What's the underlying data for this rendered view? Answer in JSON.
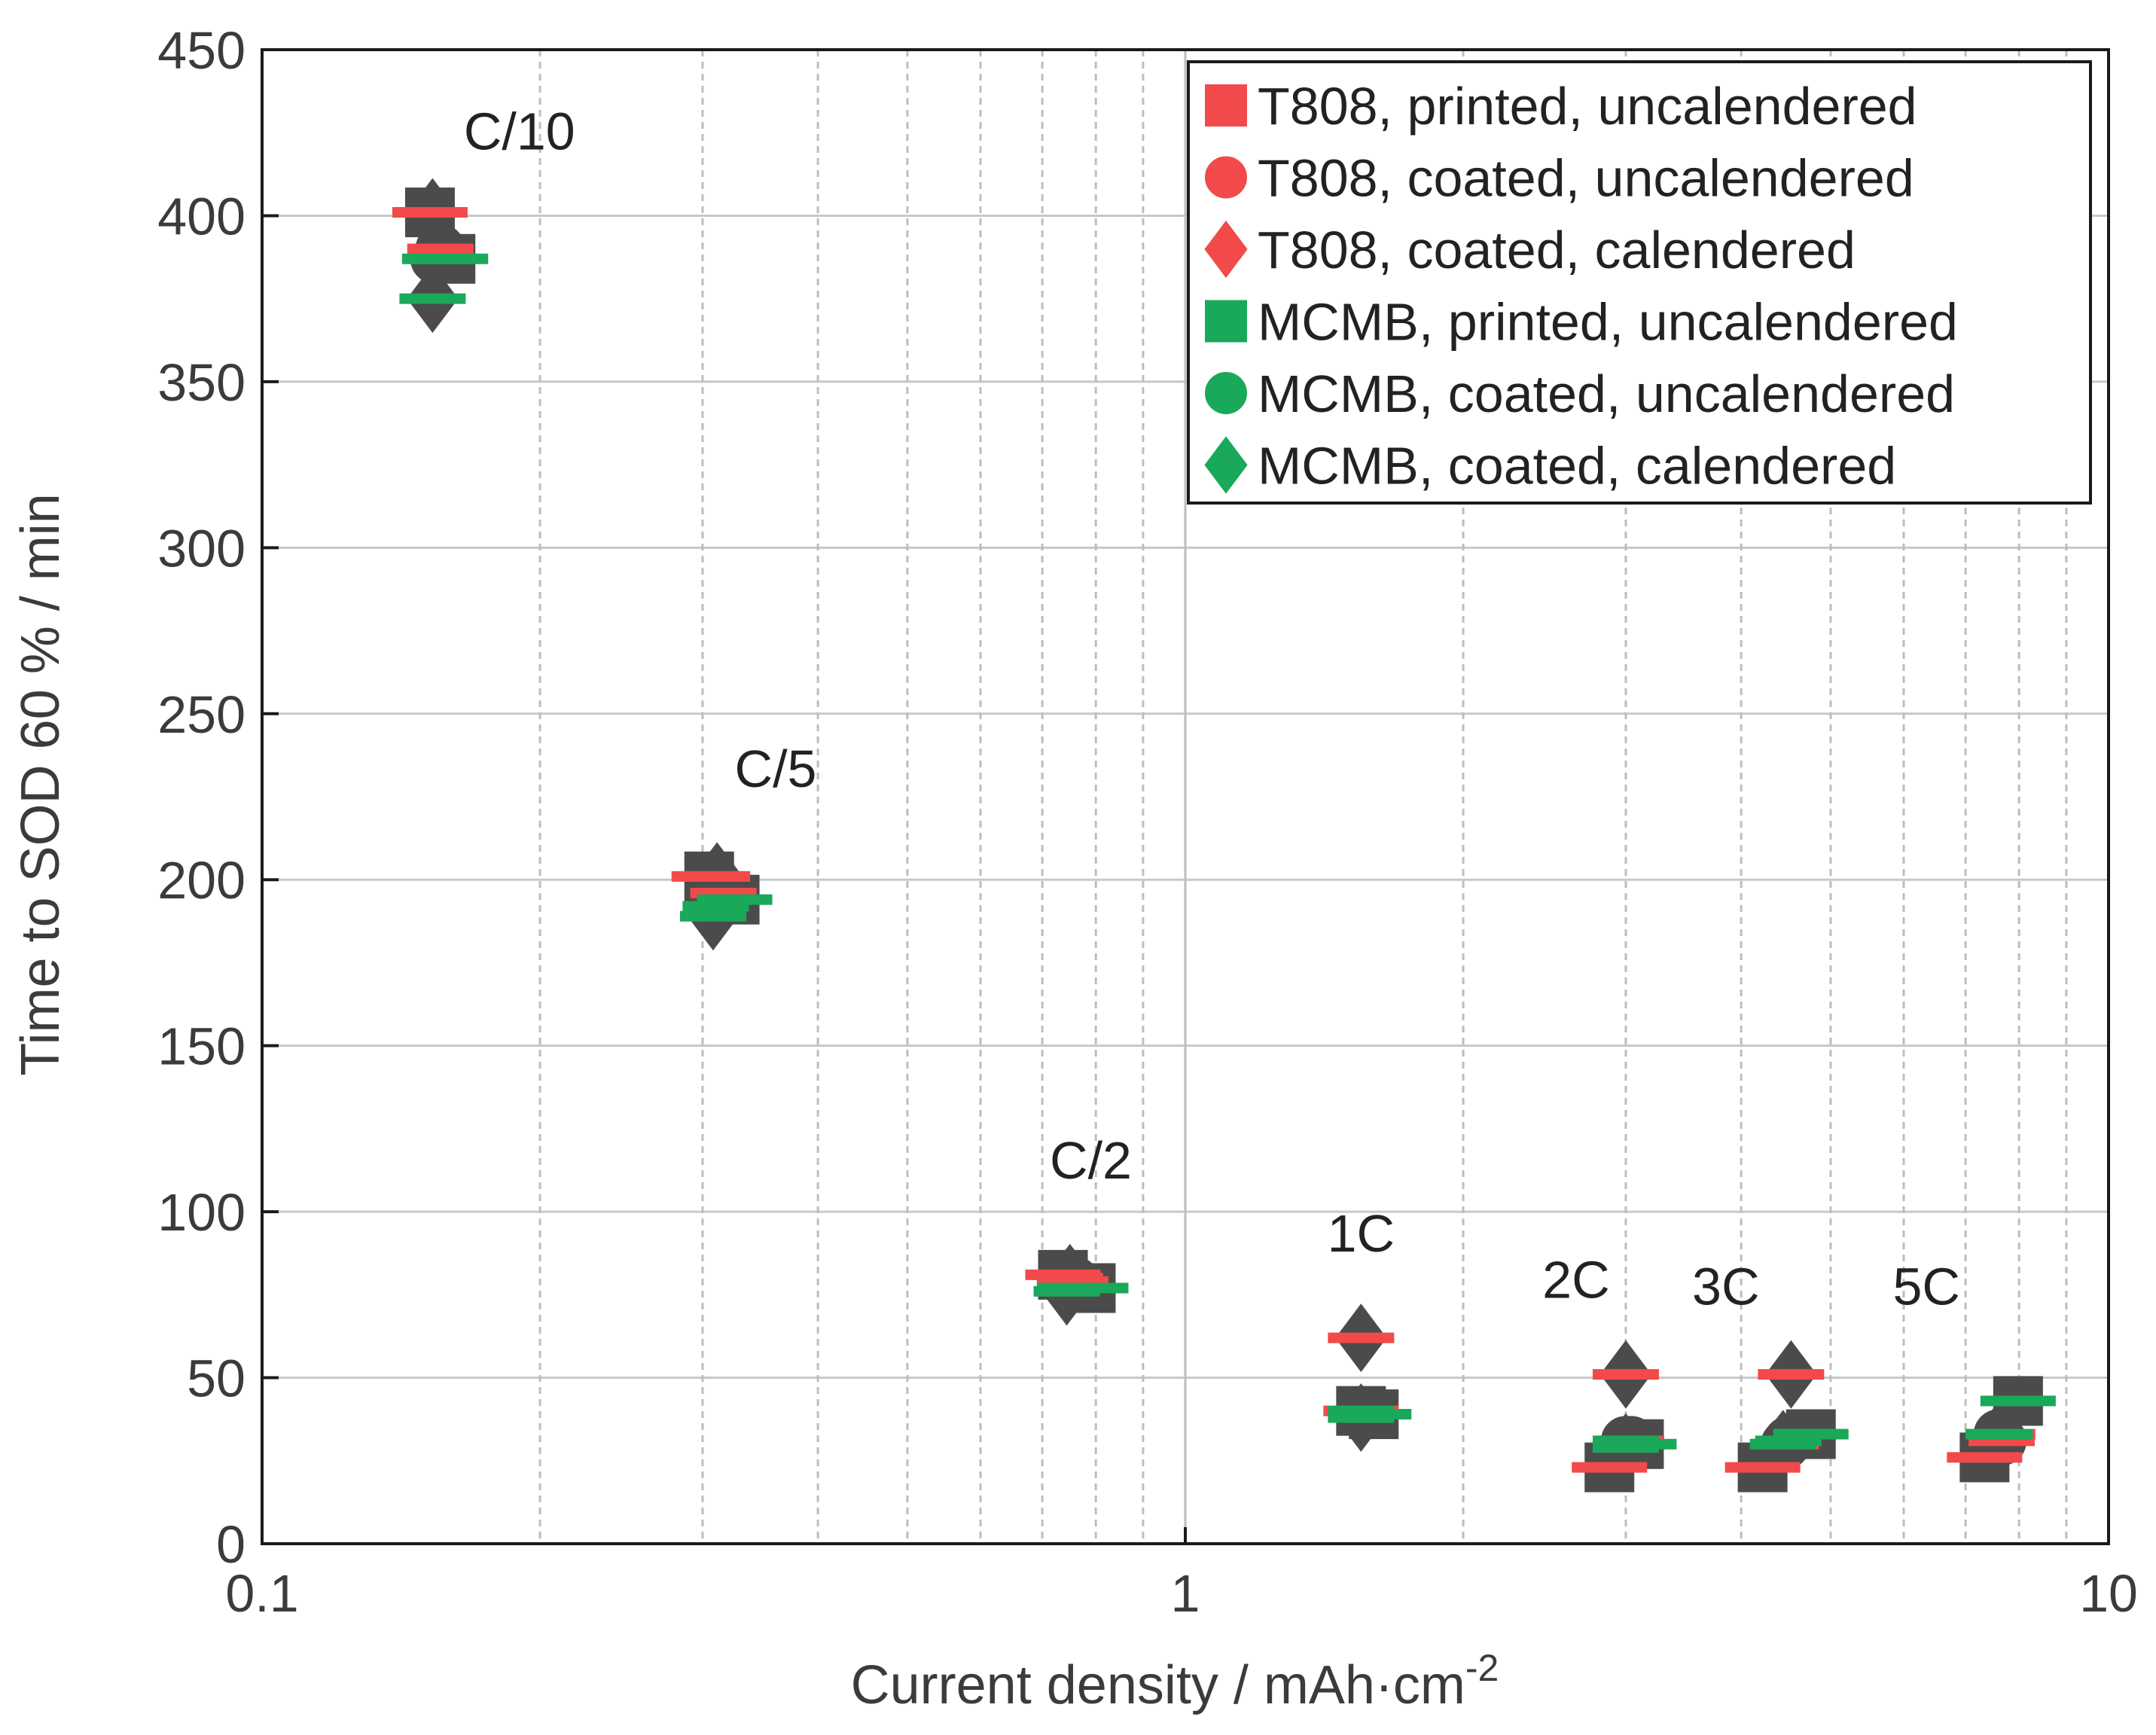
{
  "chart_data": {
    "type": "scatter",
    "title": "",
    "xlabel": "Current density / mAh·cm",
    "xlabel_sup": "-2",
    "ylabel": "Time to SOD 60 % / min",
    "xscale": "log",
    "xlim": [
      0.1,
      10
    ],
    "ylim": [
      0,
      450
    ],
    "xticks": [
      0.1,
      1,
      10
    ],
    "xtick_labels": [
      "0.1",
      "1",
      "10"
    ],
    "yticks": [
      0,
      50,
      100,
      150,
      200,
      250,
      300,
      350,
      400,
      450
    ],
    "ytick_labels": [
      "0",
      "50",
      "100",
      "150",
      "200",
      "250",
      "300",
      "350",
      "400",
      "450"
    ],
    "grid": true,
    "legend_position": "top-right",
    "annotations": [
      {
        "text": "C/10",
        "x": 0.19,
        "y": 420
      },
      {
        "text": "C/5",
        "x": 0.36,
        "y": 228
      },
      {
        "text": "C/2",
        "x": 0.79,
        "y": 110
      },
      {
        "text": "1C",
        "x": 1.55,
        "y": 88
      },
      {
        "text": "2C",
        "x": 2.65,
        "y": 74
      },
      {
        "text": "3C",
        "x": 3.85,
        "y": 72
      },
      {
        "text": "5C",
        "x": 6.35,
        "y": 72
      }
    ],
    "series": [
      {
        "name": "T808, printed, uncalendered",
        "marker": "square",
        "color": "#f24a4a",
        "x": [
          0.152,
          0.305,
          0.737,
          1.55,
          2.88,
          4.22,
          7.34
        ],
        "y": [
          401,
          201,
          81,
          40,
          23,
          23,
          26
        ]
      },
      {
        "name": "T808, coated, uncalendered",
        "marker": "circle",
        "color": "#f24a4a",
        "x": [
          0.156,
          0.316,
          0.76,
          1.56,
          3.04,
          4.47,
          7.66
        ],
        "y": [
          390,
          196,
          79,
          40,
          31,
          30,
          31
        ]
      },
      {
        "name": "T808, coated, calendered",
        "marker": "diamond",
        "color": "#f24a4a",
        "x": [
          0.153,
          0.311,
          0.75,
          1.55,
          3.0,
          4.53,
          7.67
        ],
        "y": [
          401,
          201,
          80,
          62,
          51,
          51,
          33
        ]
      },
      {
        "name": "MCMB, printed, uncalendered",
        "marker": "square",
        "color": "#1aa85a",
        "x": [
          0.16,
          0.325,
          0.79,
          1.6,
          3.1,
          4.76,
          7.98
        ],
        "y": [
          387,
          194,
          77,
          39,
          30,
          33,
          43
        ]
      },
      {
        "name": "MCMB, coated, uncalendered",
        "marker": "circle",
        "color": "#1aa85a",
        "x": [
          0.154,
          0.31,
          0.75,
          1.55,
          3.0,
          4.5,
          7.6
        ],
        "y": [
          387,
          192,
          77,
          40,
          31,
          31,
          33
        ]
      },
      {
        "name": "MCMB, coated, calendered",
        "marker": "diamond",
        "color": "#1aa85a",
        "x": [
          0.153,
          0.308,
          0.744,
          1.55,
          3.0,
          4.44,
          7.62
        ],
        "y": [
          375,
          189,
          76,
          38,
          29,
          30,
          33
        ]
      }
    ]
  }
}
